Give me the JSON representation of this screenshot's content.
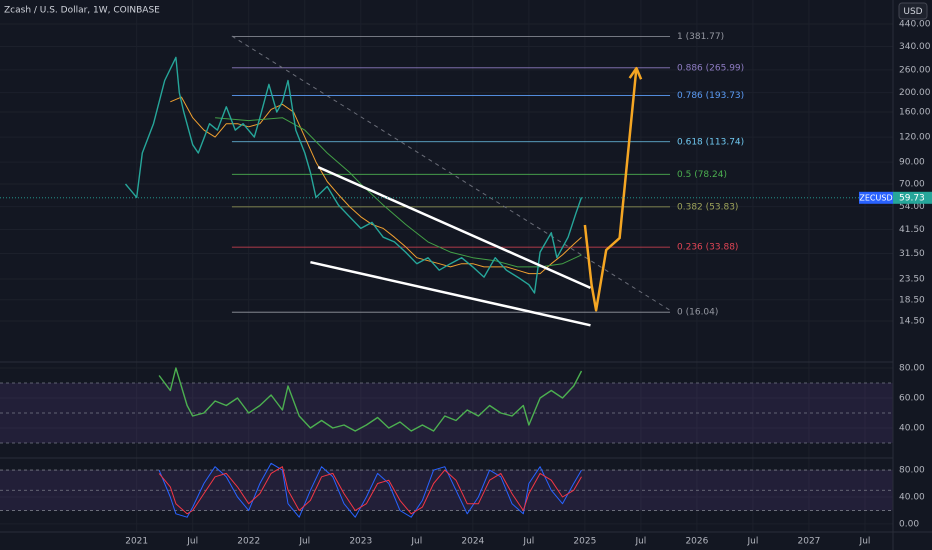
{
  "title": "Zcash / U.S. Dollar, 1W, COINBASE",
  "currency": "USD",
  "chart_data": [
    {
      "type": "line",
      "log_scale": true,
      "grid": true,
      "color": "#26a69a",
      "xlim": [
        2019.78,
        2027.75
      ],
      "ylim": [
        9.05,
        580
      ],
      "xticks": [
        {
          "value": 2021,
          "label": "2021"
        },
        {
          "value": 2021.5,
          "label": "Jul"
        },
        {
          "value": 2022,
          "label": "2022"
        },
        {
          "value": 2022.5,
          "label": "Jul"
        },
        {
          "value": 2023,
          "label": "2023"
        },
        {
          "value": 2023.5,
          "label": "Jul"
        },
        {
          "value": 2024,
          "label": "2024"
        },
        {
          "value": 2024.5,
          "label": "Jul"
        },
        {
          "value": 2025,
          "label": "2025"
        },
        {
          "value": 2025.5,
          "label": "Jul"
        },
        {
          "value": 2026,
          "label": "2026"
        },
        {
          "value": 2026.5,
          "label": "Jul"
        },
        {
          "value": 2027,
          "label": "2027"
        },
        {
          "value": 2027.5,
          "label": "Jul"
        }
      ],
      "yticks": [
        {
          "value": 440,
          "label": "440.00"
        },
        {
          "value": 340,
          "label": "340.00"
        },
        {
          "value": 260,
          "label": "260.00"
        },
        {
          "value": 200,
          "label": "200.00"
        },
        {
          "value": 160,
          "label": "160.00"
        },
        {
          "value": 120,
          "label": "120.00"
        },
        {
          "value": 90,
          "label": "90.00"
        },
        {
          "value": 70,
          "label": "70.00"
        },
        {
          "value": 54,
          "label": "54.00"
        },
        {
          "value": 41.5,
          "label": "41.50"
        },
        {
          "value": 31.5,
          "label": "31.50"
        },
        {
          "value": 23.5,
          "label": "23.50"
        },
        {
          "value": 18.5,
          "label": "18.50"
        },
        {
          "value": 14.5,
          "label": "14.50"
        }
      ],
      "x": [
        2020.9,
        2021.0,
        2021.05,
        2021.15,
        2021.25,
        2021.35,
        2021.38,
        2021.42,
        2021.5,
        2021.55,
        2021.65,
        2021.72,
        2021.8,
        2021.88,
        2021.95,
        2022.05,
        2022.1,
        2022.18,
        2022.25,
        2022.3,
        2022.35,
        2022.42,
        2022.5,
        2022.55,
        2022.6,
        2022.7,
        2022.8,
        2022.9,
        2023.0,
        2023.1,
        2023.2,
        2023.3,
        2023.4,
        2023.5,
        2023.6,
        2023.7,
        2023.8,
        2023.9,
        2024.0,
        2024.1,
        2024.2,
        2024.3,
        2024.4,
        2024.5,
        2024.55,
        2024.6,
        2024.7,
        2024.75,
        2024.85,
        2024.92,
        2024.97
      ],
      "values": [
        70,
        60,
        100,
        140,
        230,
        300,
        200,
        160,
        110,
        100,
        140,
        130,
        170,
        130,
        140,
        120,
        150,
        220,
        160,
        180,
        230,
        130,
        100,
        80,
        60,
        68,
        55,
        48,
        42,
        45,
        38,
        36,
        32,
        28,
        30,
        26,
        28,
        30,
        27,
        24,
        30,
        26,
        24,
        22,
        20,
        32,
        40,
        30,
        38,
        50,
        60
      ],
      "overlays": [
        {
          "color": "#f0a030",
          "x": [
            2021.3,
            2021.4,
            2021.5,
            2021.6,
            2021.7,
            2021.8,
            2021.9,
            2022.0,
            2022.1,
            2022.2,
            2022.3,
            2022.4,
            2022.5,
            2022.6,
            2022.7,
            2022.8,
            2022.9,
            2023.0,
            2023.1,
            2023.2,
            2023.3,
            2023.4,
            2023.5,
            2023.6,
            2023.7,
            2023.8,
            2023.9,
            2024.0,
            2024.1,
            2024.2,
            2024.3,
            2024.4,
            2024.5,
            2024.6,
            2024.7,
            2024.8,
            2024.9,
            2024.97
          ],
          "values": [
            180,
            190,
            150,
            130,
            120,
            140,
            140,
            135,
            140,
            165,
            175,
            160,
            120,
            90,
            72,
            62,
            54,
            48,
            44,
            42,
            38,
            34,
            30,
            29,
            28,
            27,
            28,
            28,
            27,
            27,
            27,
            26,
            25,
            25,
            28,
            31,
            35,
            38
          ]
        },
        {
          "color": "#43a047",
          "x": [
            2021.7,
            2022.0,
            2022.3,
            2022.5,
            2022.7,
            2022.9,
            2023.0,
            2023.2,
            2023.4,
            2023.6,
            2023.8,
            2024.0,
            2024.2,
            2024.4,
            2024.6,
            2024.8,
            2024.97
          ],
          "values": [
            150,
            145,
            150,
            130,
            100,
            80,
            70,
            55,
            44,
            36,
            32,
            30,
            29,
            27,
            27,
            28,
            31
          ]
        }
      ],
      "fib_levels": [
        {
          "label": "1 (381.77)",
          "value": 381.77,
          "color": "#9598a1"
        },
        {
          "label": "0.886 (265.99)",
          "value": 265.99,
          "color": "#8e7cc3"
        },
        {
          "label": "0.786 (193.73)",
          "value": 193.73,
          "color": "#5b9cf6"
        },
        {
          "label": "0.618 (113.74)",
          "value": 113.74,
          "color": "#6fc8f0"
        },
        {
          "label": "0.5 (78.24)",
          "value": 78.24,
          "color": "#4caf50"
        },
        {
          "label": "0.382 (53.83)",
          "value": 53.83,
          "color": "#9ea35a"
        },
        {
          "label": "0.236 (33.88)",
          "value": 33.88,
          "color": "#e04555"
        },
        {
          "label": "0 (16.04)",
          "value": 16.04,
          "color": "#9598a1"
        }
      ],
      "fib_x": [
        2021.85,
        2025.76
      ],
      "trendlines": [
        {
          "color": "#ffffff",
          "x": [
            2022.62,
            2025.05
          ],
          "values": [
            85,
            21.2
          ]
        },
        {
          "color": "#ffffff",
          "x": [
            2022.55,
            2025.05
          ],
          "values": [
            28.5,
            13.8
          ]
        }
      ],
      "dashed_line": {
        "color": "#6a6d78",
        "x": [
          2021.85,
          2025.76
        ],
        "values": [
          383,
          16.4
        ]
      },
      "projection": {
        "color": "#f5a623",
        "x": [
          2025.0,
          2025.06,
          2025.1,
          2025.19,
          2025.31,
          2025.46
        ],
        "values": [
          43.7,
          21.9,
          16.4,
          32.8,
          37.6,
          265
        ]
      },
      "last_price": {
        "symbol": "ZECUSD",
        "value": 59.73
      }
    },
    {
      "type": "line",
      "grid": true,
      "color": "#4caf50",
      "ylim": [
        22,
        84
      ],
      "yticks": [
        {
          "value": 80,
          "label": "80.00"
        },
        {
          "value": 60,
          "label": "60.00"
        },
        {
          "value": 40,
          "label": "40.00"
        }
      ],
      "levels": [
        70,
        50,
        30
      ],
      "x": [
        2021.2,
        2021.3,
        2021.35,
        2021.45,
        2021.5,
        2021.6,
        2021.7,
        2021.8,
        2021.9,
        2022.0,
        2022.1,
        2022.2,
        2022.3,
        2022.35,
        2022.45,
        2022.55,
        2022.65,
        2022.75,
        2022.85,
        2022.95,
        2023.05,
        2023.15,
        2023.25,
        2023.35,
        2023.45,
        2023.55,
        2023.65,
        2023.75,
        2023.85,
        2023.95,
        2024.05,
        2024.15,
        2024.25,
        2024.35,
        2024.45,
        2024.5,
        2024.6,
        2024.7,
        2024.8,
        2024.9,
        2024.97
      ],
      "values": [
        75,
        65,
        80,
        55,
        48,
        50,
        58,
        55,
        60,
        50,
        55,
        62,
        52,
        68,
        48,
        40,
        45,
        40,
        42,
        38,
        42,
        47,
        40,
        44,
        38,
        42,
        38,
        48,
        45,
        52,
        48,
        55,
        50,
        48,
        55,
        42,
        60,
        65,
        60,
        68,
        78
      ]
    },
    {
      "type": "line",
      "grid": true,
      "ylim": [
        -12,
        92
      ],
      "yticks": [
        {
          "value": 80,
          "label": "80.00"
        },
        {
          "value": 40,
          "label": "40.00"
        },
        {
          "value": 0,
          "label": "0.00"
        }
      ],
      "levels": [
        80,
        50,
        20
      ],
      "x": [
        2021.2,
        2021.3,
        2021.35,
        2021.45,
        2021.5,
        2021.6,
        2021.7,
        2021.8,
        2021.9,
        2022.0,
        2022.1,
        2022.2,
        2022.3,
        2022.35,
        2022.45,
        2022.55,
        2022.65,
        2022.75,
        2022.85,
        2022.95,
        2023.05,
        2023.15,
        2023.25,
        2023.35,
        2023.45,
        2023.55,
        2023.65,
        2023.75,
        2023.85,
        2023.95,
        2024.05,
        2024.15,
        2024.25,
        2024.35,
        2024.45,
        2024.5,
        2024.6,
        2024.7,
        2024.8,
        2024.9,
        2024.97
      ],
      "series": [
        {
          "color": "#2962ff",
          "values": [
            80,
            40,
            15,
            10,
            25,
            60,
            85,
            70,
            40,
            20,
            60,
            90,
            80,
            30,
            10,
            50,
            85,
            70,
            30,
            10,
            40,
            75,
            60,
            20,
            10,
            35,
            80,
            85,
            50,
            15,
            40,
            80,
            70,
            30,
            15,
            60,
            85,
            50,
            30,
            60,
            80
          ]
        },
        {
          "color": "#f23645",
          "values": [
            75,
            55,
            30,
            15,
            20,
            45,
            70,
            75,
            55,
            30,
            45,
            75,
            85,
            50,
            20,
            35,
            70,
            75,
            45,
            20,
            30,
            60,
            65,
            35,
            15,
            25,
            60,
            80,
            65,
            30,
            30,
            65,
            75,
            45,
            20,
            45,
            75,
            65,
            40,
            50,
            70
          ]
        }
      ]
    }
  ]
}
